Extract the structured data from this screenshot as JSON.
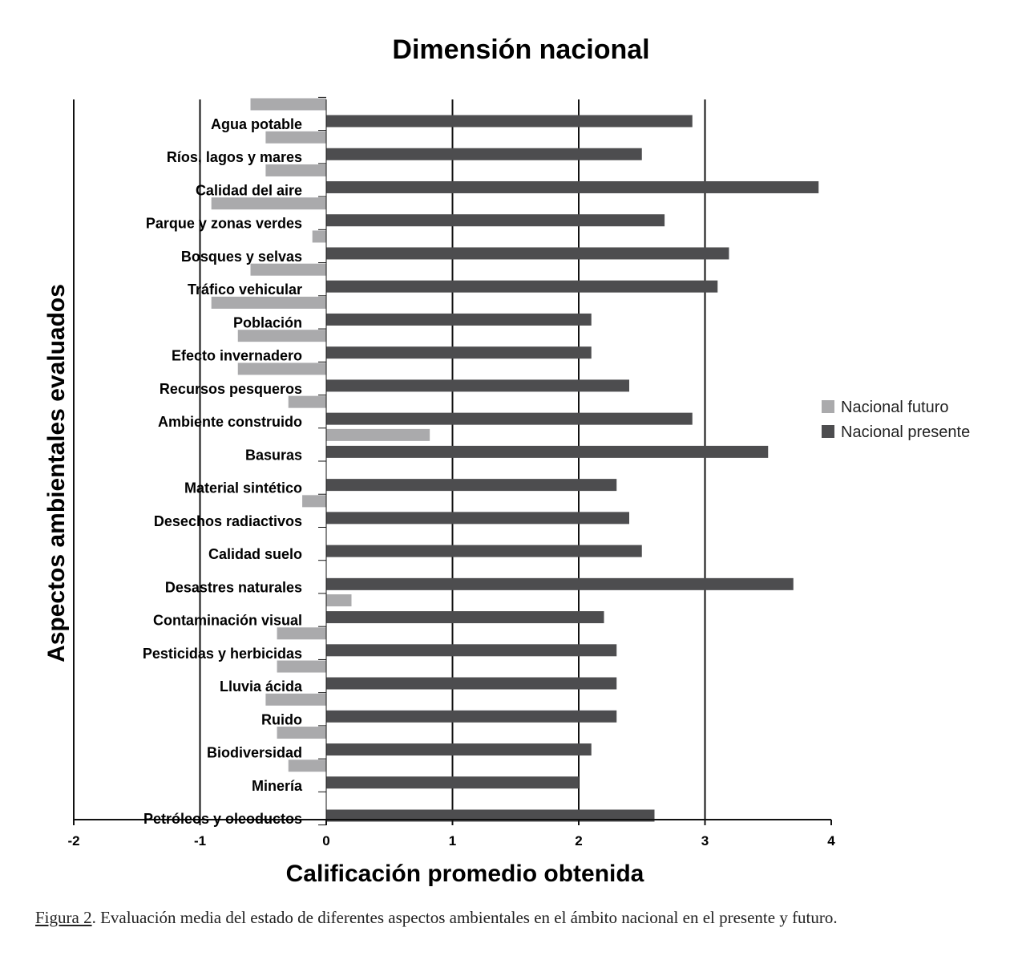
{
  "chart_data": {
    "type": "bar",
    "orientation": "horizontal",
    "title": "Dimensión nacional",
    "xlabel": "Calificación promedio obtenida",
    "ylabel": "Aspectos ambientales evaluados",
    "xlim": [
      -2,
      4
    ],
    "xticks": [
      "-2",
      "-1",
      "0",
      "1",
      "2",
      "3",
      "4"
    ],
    "gridlines_at": [
      -1,
      1,
      2,
      3
    ],
    "legend_position": "right",
    "categories": [
      "Agua potable",
      "Ríos, lagos y mares",
      "Calidad del aire",
      "Parque y zonas verdes",
      "Bosques y selvas",
      "Tráfico vehicular",
      "Población",
      "Efecto invernadero",
      "Recursos pesqueros",
      "Ambiente construido",
      "Basuras",
      "Material sintético",
      "Desechos radiactivos",
      "Calidad suelo",
      "Desastres naturales",
      "Contaminación visual",
      "Pesticidas y herbicidas",
      "Lluvia ácida",
      "Ruido",
      "Biodiversidad",
      "Minería",
      "Petróleos y oleoductos"
    ],
    "series": [
      {
        "name": "Nacional futuro",
        "color": "#aaaaac",
        "values": [
          -0.6,
          -0.48,
          -0.48,
          -0.91,
          -0.11,
          -0.6,
          -0.91,
          -0.7,
          -0.7,
          -0.3,
          0.82,
          0,
          -0.19,
          0,
          0,
          0.2,
          -0.39,
          -0.39,
          -0.48,
          -0.39,
          -0.3,
          0
        ]
      },
      {
        "name": "Nacional presente",
        "color": "#4d4d4f",
        "values": [
          2.9,
          2.5,
          3.9,
          2.68,
          3.19,
          3.1,
          2.1,
          2.1,
          2.4,
          2.9,
          3.5,
          2.3,
          2.4,
          2.5,
          3.7,
          2.2,
          2.3,
          2.3,
          2.3,
          2.1,
          2.0,
          2.6
        ]
      }
    ]
  },
  "caption": {
    "ref": "Figura 2",
    "text": ". Evaluación media del estado de diferentes aspectos ambientales en el ámbito nacional en el presente y futuro."
  }
}
